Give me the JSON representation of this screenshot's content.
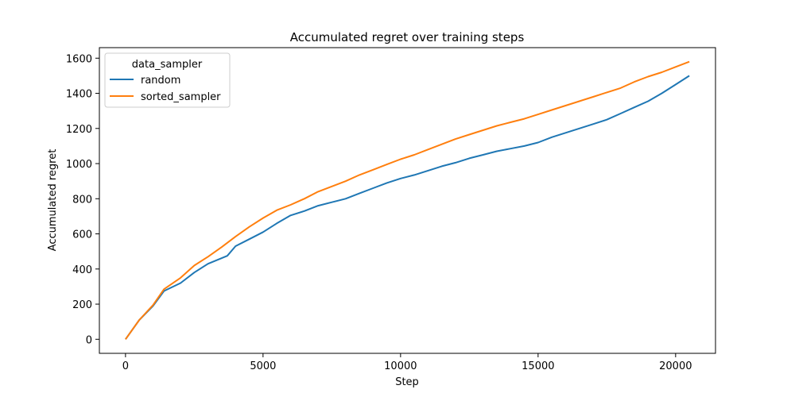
{
  "chart_data": {
    "type": "line",
    "title": "Accumulated regret over training steps",
    "xlabel": "Step",
    "ylabel": "Accumulated regret",
    "xlim": [
      -950,
      21450
    ],
    "ylim": [
      -80,
      1660
    ],
    "xticks": [
      0,
      5000,
      10000,
      15000,
      20000
    ],
    "yticks": [
      0,
      200,
      400,
      600,
      800,
      1000,
      1200,
      1400,
      1600
    ],
    "grid": false,
    "legend": {
      "title": "data_sampler",
      "placement": "top-left"
    },
    "series": [
      {
        "name": "random",
        "color": "#1f77b4",
        "x": [
          0,
          500,
          1000,
          1400,
          2000,
          2500,
          3000,
          3700,
          4000,
          4500,
          5000,
          5500,
          6000,
          6500,
          7000,
          7500,
          8000,
          8500,
          9000,
          9500,
          10000,
          10500,
          11000,
          11500,
          12000,
          12500,
          13000,
          13500,
          14000,
          14500,
          15000,
          15500,
          16000,
          16500,
          17000,
          17500,
          18000,
          18500,
          19000,
          19500,
          20000,
          20500
        ],
        "y": [
          0,
          110,
          190,
          275,
          320,
          380,
          430,
          475,
          530,
          570,
          610,
          660,
          705,
          730,
          760,
          780,
          800,
          830,
          860,
          890,
          915,
          935,
          960,
          985,
          1005,
          1030,
          1050,
          1070,
          1085,
          1100,
          1120,
          1150,
          1175,
          1200,
          1225,
          1250,
          1285,
          1320,
          1355,
          1400,
          1450,
          1500
        ]
      },
      {
        "name": "sorted_sampler",
        "color": "#ff7f0e",
        "x": [
          0,
          500,
          1000,
          1400,
          2000,
          2500,
          3000,
          3500,
          4000,
          4500,
          5000,
          5500,
          6000,
          6500,
          7000,
          7500,
          8000,
          8500,
          9000,
          9500,
          10000,
          10500,
          11000,
          11500,
          12000,
          12500,
          13000,
          13500,
          14000,
          14500,
          15000,
          15500,
          16000,
          16500,
          17000,
          17500,
          18000,
          18500,
          19000,
          19500,
          20000,
          20500
        ],
        "y": [
          0,
          110,
          195,
          285,
          350,
          420,
          470,
          525,
          585,
          640,
          690,
          735,
          765,
          800,
          840,
          870,
          900,
          935,
          965,
          995,
          1025,
          1050,
          1080,
          1110,
          1140,
          1165,
          1190,
          1215,
          1235,
          1255,
          1280,
          1305,
          1330,
          1355,
          1380,
          1405,
          1430,
          1465,
          1495,
          1520,
          1550,
          1580
        ]
      }
    ]
  }
}
